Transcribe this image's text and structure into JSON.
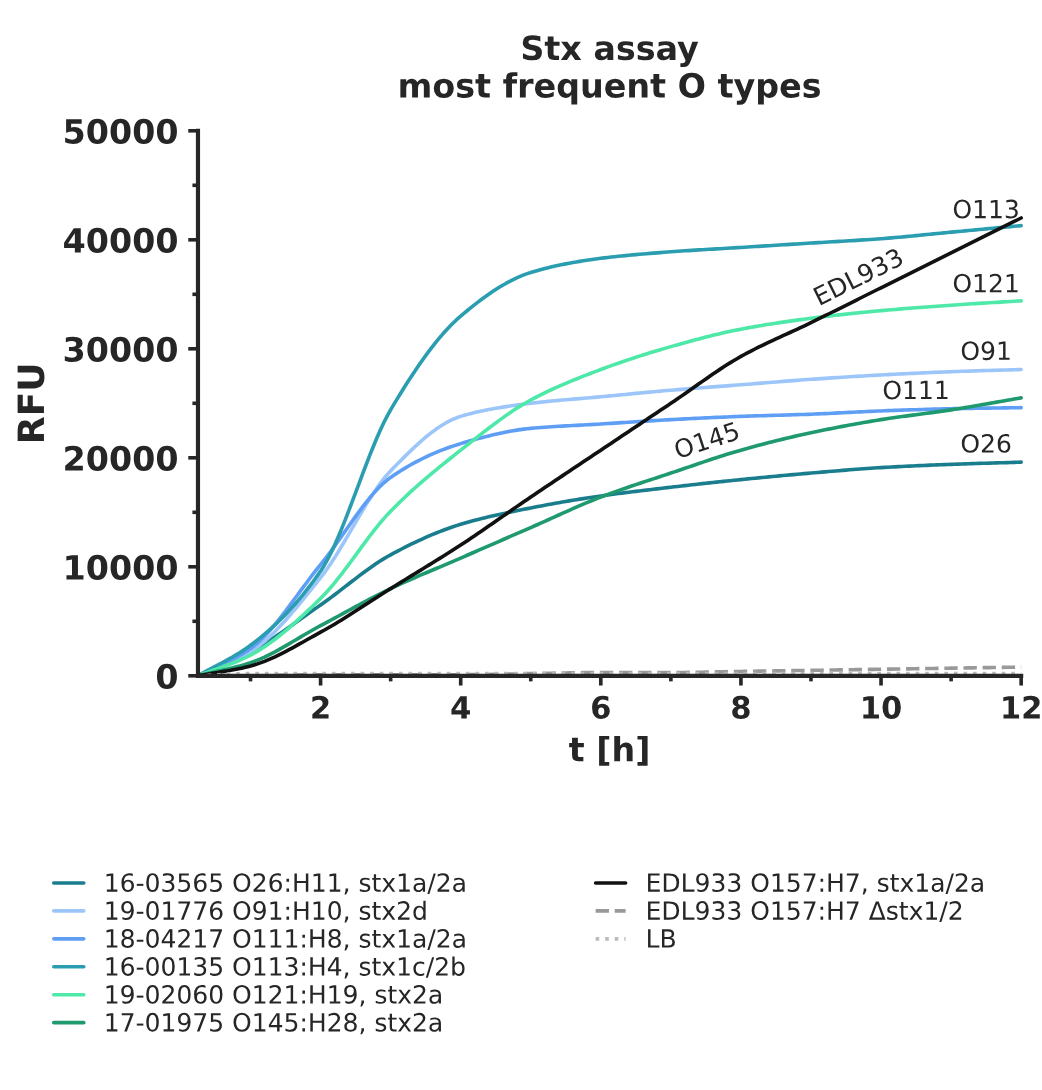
{
  "chart_data": {
    "type": "line",
    "title": "Stx assay\nmost frequent O types",
    "xlabel": "t [h]",
    "ylabel": "RFU",
    "x": [
      0.25,
      1,
      2,
      3,
      4,
      5,
      6,
      7,
      8,
      9,
      10,
      11,
      12
    ],
    "series": [
      {
        "name": "16-03565 O26:H11, stx1a/2a",
        "color": "#1a7d8e",
        "values": [
          0,
          2200,
          6500,
          11100,
          13900,
          15400,
          16500,
          17300,
          18000,
          18600,
          19100,
          19400,
          19600
        ]
      },
      {
        "name": "19-01776 O91:H10, stx2d",
        "color": "#9cc6fa",
        "values": [
          0,
          2200,
          9000,
          18800,
          23800,
          25000,
          25600,
          26200,
          26700,
          27200,
          27600,
          27900,
          28100
        ]
      },
      {
        "name": "18-04217 O111:H8, stx1a/2a",
        "color": "#5f9ef5",
        "values": [
          0,
          2500,
          10200,
          18200,
          21300,
          22700,
          23100,
          23500,
          23800,
          24000,
          24300,
          24500,
          24600
        ]
      },
      {
        "name": "16-00135 O113:H4, stx1c/2b",
        "color": "#2a9db0",
        "values": [
          0,
          2800,
          9600,
          24400,
          33000,
          37000,
          38300,
          38900,
          39300,
          39700,
          40100,
          40700,
          41300
        ]
      },
      {
        "name": "19-02060 O121:H19, stx2a",
        "color": "#4ee8a8",
        "values": [
          0,
          1900,
          7100,
          15100,
          20700,
          25300,
          28100,
          30200,
          31800,
          32800,
          33500,
          34000,
          34400
        ]
      },
      {
        "name": "17-01975 O145:H28, stx2a",
        "color": "#1f9a6e",
        "values": [
          0,
          1200,
          4600,
          8000,
          10800,
          13600,
          16400,
          18600,
          20700,
          22300,
          23500,
          24400,
          25500
        ]
      },
      {
        "name": "EDL933 O157:H7, stx1a/2a",
        "color": "#111111",
        "values": [
          0,
          900,
          4000,
          8000,
          12000,
          16400,
          20700,
          25000,
          29300,
          32400,
          35600,
          38800,
          42000
        ]
      },
      {
        "name": "EDL933 O157:H7 Δstx1/2",
        "color": "#999999",
        "line_style": "dashed",
        "values": [
          0,
          0,
          100,
          100,
          100,
          200,
          300,
          300,
          400,
          500,
          600,
          700,
          800
        ]
      },
      {
        "name": "LB",
        "color": "#bbbbbb",
        "line_style": "dotted",
        "values": [
          0,
          200,
          200,
          200,
          200,
          200,
          200,
          200,
          200,
          200,
          200,
          200,
          200
        ]
      }
    ],
    "xlim": [
      0.25,
      12
    ],
    "xticks": [
      2,
      4,
      6,
      8,
      10,
      12
    ],
    "ylim": [
      0,
      50000
    ],
    "yticks": [
      0,
      10000,
      20000,
      30000,
      40000,
      50000
    ],
    "grid": false,
    "legend": "bottom",
    "marker": "none",
    "annotations": [
      {
        "text": "O113",
        "x": 11.5,
        "y": 41000
      },
      {
        "text": "EDL933",
        "x": 9.8,
        "y": 35000
      },
      {
        "text": "O121",
        "x": 11.5,
        "y": 34200
      },
      {
        "text": "O91",
        "x": 11.5,
        "y": 28000
      },
      {
        "text": "O111",
        "x": 10.5,
        "y": 24400
      },
      {
        "text": "O145",
        "x": 7.6,
        "y": 19900
      },
      {
        "text": "O26",
        "x": 11.5,
        "y": 19500
      }
    ]
  }
}
